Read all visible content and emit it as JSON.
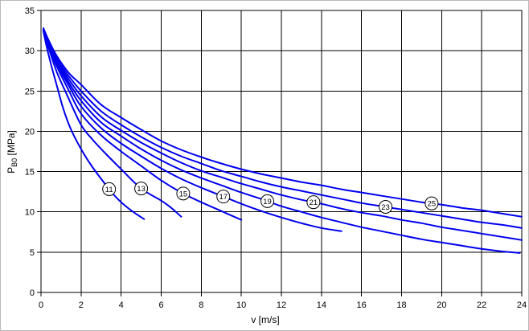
{
  "chart_data": {
    "type": "line",
    "title": "",
    "xlabel": "v [m/s]",
    "ylabel": "PB0 [MPa]",
    "ylabel_parts": {
      "symbol": "P",
      "subscript": "B0",
      "unit": " [MPa]"
    },
    "xlim": [
      0,
      24
    ],
    "ylim": [
      0,
      35
    ],
    "xticks": [
      0,
      2,
      4,
      6,
      8,
      10,
      12,
      14,
      16,
      18,
      20,
      22,
      24
    ],
    "yticks": [
      0,
      5,
      10,
      15,
      20,
      25,
      30,
      35
    ],
    "grid": true,
    "legend_position": "none",
    "colors": {
      "curve": "#0000ee",
      "grid": "#000000",
      "axis": "#000000",
      "background": "#ffffff",
      "label_circle_fill": "#ffffff",
      "label_circle_stroke": "#000000",
      "text": "#000000"
    },
    "series": [
      {
        "name": "11",
        "label_v": 3.4,
        "points": [
          [
            0.12,
            32.4
          ],
          [
            0.3,
            30.3
          ],
          [
            0.5,
            28.3
          ],
          [
            0.8,
            25.6
          ],
          [
            1.1,
            22.9
          ],
          [
            1.5,
            20.2
          ],
          [
            2,
            17.8
          ],
          [
            2.5,
            15.8
          ],
          [
            3,
            14.1
          ],
          [
            3.5,
            12.5
          ],
          [
            4,
            11.2
          ],
          [
            4.6,
            10.0
          ],
          [
            5.15,
            9.1
          ]
        ]
      },
      {
        "name": "13",
        "label_v": 5.0,
        "points": [
          [
            0.12,
            32.5
          ],
          [
            0.4,
            30.2
          ],
          [
            0.8,
            27.3
          ],
          [
            1.3,
            24.5
          ],
          [
            2,
            20.8
          ],
          [
            2.6,
            18.9
          ],
          [
            3.2,
            17.3
          ],
          [
            4,
            15.3
          ],
          [
            5,
            12.9
          ],
          [
            6,
            11.4
          ],
          [
            6.5,
            10.5
          ],
          [
            7.0,
            9.4
          ]
        ]
      },
      {
        "name": "15",
        "label_v": 7.1,
        "points": [
          [
            0.12,
            32.5
          ],
          [
            0.4,
            30.4
          ],
          [
            0.8,
            28.0
          ],
          [
            1.4,
            25.0
          ],
          [
            2,
            22.2
          ],
          [
            3,
            19.5
          ],
          [
            4,
            17.5
          ],
          [
            5,
            15.7
          ],
          [
            6,
            13.9
          ],
          [
            7,
            12.4
          ],
          [
            8,
            11.2
          ],
          [
            9,
            10.1
          ],
          [
            10,
            9.0
          ]
        ]
      },
      {
        "name": "17",
        "label_v": 9.1,
        "points": [
          [
            0.12,
            32.6
          ],
          [
            0.4,
            30.6
          ],
          [
            0.8,
            28.3
          ],
          [
            1.4,
            25.6
          ],
          [
            2,
            23.1
          ],
          [
            3,
            20.4
          ],
          [
            4,
            18.5
          ],
          [
            5,
            16.9
          ],
          [
            6,
            15.4
          ],
          [
            7,
            14.1
          ],
          [
            8,
            13.0
          ],
          [
            9,
            12.0
          ],
          [
            10,
            11.0
          ],
          [
            11,
            10.1
          ],
          [
            12,
            9.3
          ],
          [
            13,
            8.6
          ],
          [
            14,
            8.0
          ],
          [
            15,
            7.6
          ]
        ]
      },
      {
        "name": "19",
        "label_v": 11.3,
        "points": [
          [
            0.12,
            32.6
          ],
          [
            0.4,
            30.8
          ],
          [
            0.8,
            28.6
          ],
          [
            1.4,
            26.0
          ],
          [
            2,
            23.8
          ],
          [
            3,
            21.1
          ],
          [
            4,
            19.4
          ],
          [
            5,
            17.8
          ],
          [
            6,
            16.4
          ],
          [
            7,
            15.2
          ],
          [
            8,
            14.2
          ],
          [
            9,
            13.3
          ],
          [
            10,
            12.4
          ],
          [
            11,
            11.6
          ],
          [
            12,
            10.7
          ],
          [
            13,
            10.0
          ],
          [
            14,
            9.3
          ],
          [
            15,
            8.7
          ],
          [
            16,
            8.1
          ],
          [
            17,
            7.6
          ],
          [
            18,
            7.1
          ],
          [
            19,
            6.6
          ],
          [
            20,
            6.2
          ],
          [
            21,
            5.8
          ],
          [
            22,
            5.4
          ],
          [
            23,
            5.1
          ],
          [
            23.9,
            4.9
          ]
        ]
      },
      {
        "name": "21",
        "label_v": 13.6,
        "points": [
          [
            0.12,
            32.7
          ],
          [
            0.4,
            31.0
          ],
          [
            0.8,
            28.8
          ],
          [
            1.4,
            26.4
          ],
          [
            2,
            24.4
          ],
          [
            3,
            21.8
          ],
          [
            4,
            20.1
          ],
          [
            5,
            18.6
          ],
          [
            6,
            17.3
          ],
          [
            7,
            16.1
          ],
          [
            8,
            15.1
          ],
          [
            9,
            14.3
          ],
          [
            10,
            13.5
          ],
          [
            11,
            12.8
          ],
          [
            12,
            12.1
          ],
          [
            13,
            11.5
          ],
          [
            14,
            11.0
          ],
          [
            15,
            10.4
          ],
          [
            16,
            9.9
          ],
          [
            17,
            9.5
          ],
          [
            18,
            9.0
          ],
          [
            19,
            8.6
          ],
          [
            20,
            8.1
          ],
          [
            21,
            7.7
          ],
          [
            22,
            7.3
          ],
          [
            23,
            6.9
          ],
          [
            24,
            6.5
          ]
        ]
      },
      {
        "name": "23",
        "label_v": 17.2,
        "points": [
          [
            0.12,
            32.7
          ],
          [
            0.4,
            31.1
          ],
          [
            0.8,
            29.0
          ],
          [
            1.4,
            26.8
          ],
          [
            2,
            25.0
          ],
          [
            3,
            22.5
          ],
          [
            4,
            20.8
          ],
          [
            5,
            19.3
          ],
          [
            6,
            18.0
          ],
          [
            7,
            16.9
          ],
          [
            8,
            16.0
          ],
          [
            9,
            15.1
          ],
          [
            10,
            14.4
          ],
          [
            11,
            13.7
          ],
          [
            12,
            13.1
          ],
          [
            13,
            12.6
          ],
          [
            14,
            12.1
          ],
          [
            15,
            11.6
          ],
          [
            16,
            11.1
          ],
          [
            17,
            10.7
          ],
          [
            18,
            10.3
          ],
          [
            19,
            9.9
          ],
          [
            20,
            9.5
          ],
          [
            21,
            9.1
          ],
          [
            22,
            8.7
          ],
          [
            23,
            8.4
          ],
          [
            24,
            8.0
          ]
        ]
      },
      {
        "name": "25",
        "label_v": 19.5,
        "points": [
          [
            0.12,
            32.8
          ],
          [
            0.4,
            31.2
          ],
          [
            0.8,
            29.3
          ],
          [
            1.4,
            27.2
          ],
          [
            2,
            25.8
          ],
          [
            3,
            23.3
          ],
          [
            4,
            21.7
          ],
          [
            5,
            20.2
          ],
          [
            6,
            18.8
          ],
          [
            7,
            17.7
          ],
          [
            8,
            16.8
          ],
          [
            9,
            16.0
          ],
          [
            10,
            15.3
          ],
          [
            11,
            14.7
          ],
          [
            12,
            14.2
          ],
          [
            13,
            13.7
          ],
          [
            14,
            13.3
          ],
          [
            15,
            12.8
          ],
          [
            16,
            12.4
          ],
          [
            17,
            12.0
          ],
          [
            18,
            11.6
          ],
          [
            19,
            11.2
          ],
          [
            20,
            10.9
          ],
          [
            21,
            10.5
          ],
          [
            22,
            10.2
          ],
          [
            23,
            9.8
          ],
          [
            24,
            9.4
          ]
        ]
      }
    ]
  }
}
